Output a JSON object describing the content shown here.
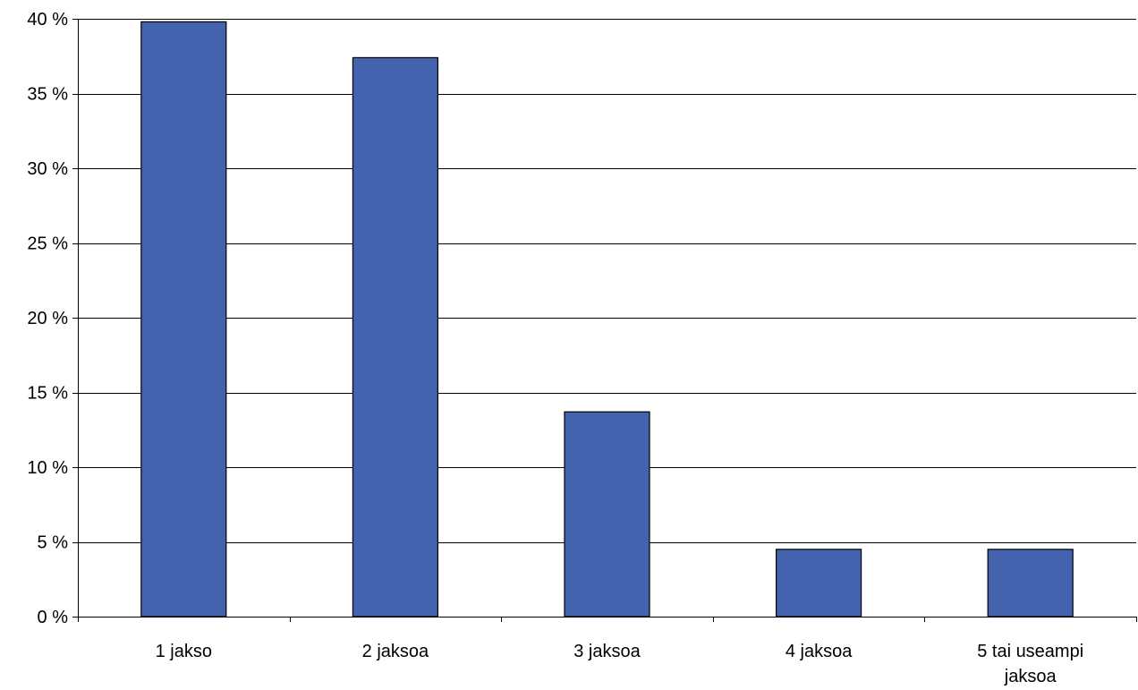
{
  "chart_data": {
    "type": "bar",
    "categories": [
      "1 jakso",
      "2 jaksoa",
      "3 jaksoa",
      "4 jaksoa",
      "5 tai useampi jaksoa"
    ],
    "category_lines": [
      [
        "1 jakso"
      ],
      [
        "2 jaksoa"
      ],
      [
        "3 jaksoa"
      ],
      [
        "4 jaksoa"
      ],
      [
        "5 tai useampi",
        "jaksoa"
      ]
    ],
    "series": [
      {
        "values": [
          39.8,
          37.4,
          13.7,
          4.5,
          4.5
        ]
      }
    ],
    "title": "",
    "xlabel": "",
    "ylabel": "",
    "ylim": [
      0,
      40
    ],
    "yticks": [
      0,
      5,
      10,
      15,
      20,
      25,
      30,
      35,
      40
    ],
    "ytick_labels": [
      "0 %",
      "5 %",
      "10 %",
      "15 %",
      "20 %",
      "25 %",
      "30 %",
      "35 %",
      "40 %"
    ],
    "grid": true,
    "legend": "none",
    "bar_color": "#4463AE"
  }
}
